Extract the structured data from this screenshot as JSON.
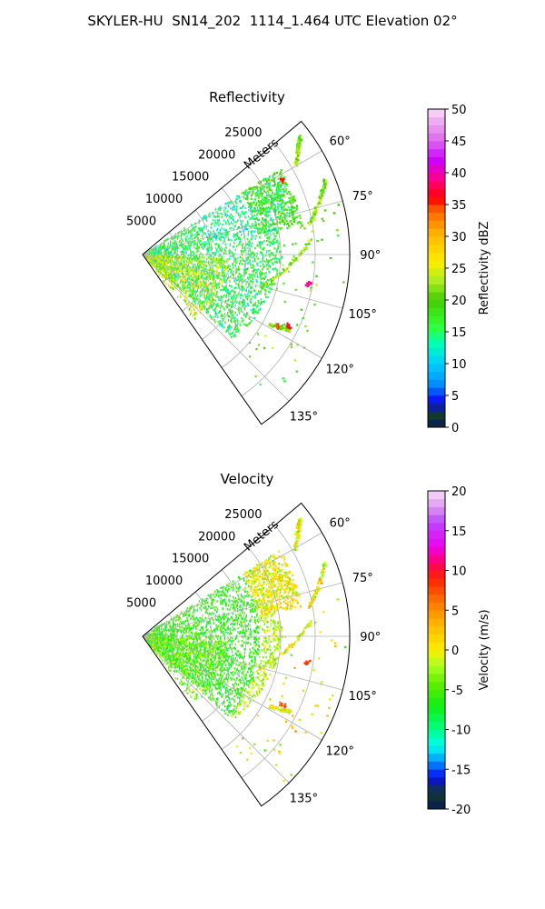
{
  "figure": {
    "title": "SKYLER-HU  SN14_202  1114_1.464 UTC Elevation 02°"
  },
  "chart_data": [
    {
      "type": "polar-sector",
      "title": "Reflectivity",
      "range_label": "Meters",
      "range_ticks": [
        5000,
        10000,
        15000,
        20000,
        25000
      ],
      "range_max_m": 30000,
      "azimuth_range_deg": [
        50,
        145
      ],
      "azimuth_ticks_deg": [
        60,
        75,
        90,
        105,
        120,
        135
      ],
      "colorbar": {
        "label": "Reflectivity dBZ",
        "range": [
          0,
          50
        ],
        "ticks": [
          0,
          5,
          10,
          15,
          20,
          25,
          30,
          35,
          40,
          45,
          50
        ],
        "stops": [
          [
            0,
            "#0b1a55"
          ],
          [
            2,
            "#123a2c"
          ],
          [
            4,
            "#0a0af0"
          ],
          [
            7,
            "#0095ff"
          ],
          [
            10,
            "#00ccff"
          ],
          [
            13,
            "#00ffbb"
          ],
          [
            16,
            "#33ff33"
          ],
          [
            20,
            "#44cc00"
          ],
          [
            23,
            "#aaee22"
          ],
          [
            26,
            "#ffee00"
          ],
          [
            30,
            "#ffbb00"
          ],
          [
            34,
            "#ff6600"
          ],
          [
            36,
            "#ff0000"
          ],
          [
            39,
            "#ff0088"
          ],
          [
            42,
            "#cc00ff"
          ],
          [
            45,
            "#dd66ee"
          ],
          [
            48,
            "#eeaaee"
          ],
          [
            50,
            "#f8ddf8"
          ]
        ]
      },
      "features": {
        "main_echo_mean": 16,
        "near_sector_mean": 24,
        "line_mean": 22,
        "peak_values": [
          40,
          38,
          37,
          36
        ]
      }
    },
    {
      "type": "polar-sector",
      "title": "Velocity",
      "range_label": "Meters",
      "range_ticks": [
        5000,
        10000,
        15000,
        20000,
        25000
      ],
      "range_max_m": 30000,
      "azimuth_range_deg": [
        50,
        145
      ],
      "azimuth_ticks_deg": [
        60,
        75,
        90,
        105,
        120,
        135
      ],
      "colorbar": {
        "label": "Velocity (m/s)",
        "range": [
          -20,
          20
        ],
        "ticks": [
          -20,
          -15,
          -10,
          -5,
          0,
          5,
          10,
          15,
          20
        ],
        "stops": [
          [
            -20,
            "#0b1a55"
          ],
          [
            -18,
            "#123a2c"
          ],
          [
            -16,
            "#0a0af0"
          ],
          [
            -14,
            "#0095ff"
          ],
          [
            -12,
            "#00ffee"
          ],
          [
            -10,
            "#00ff88"
          ],
          [
            -7,
            "#11ee11"
          ],
          [
            -4,
            "#66ee00"
          ],
          [
            -2,
            "#aaff22"
          ],
          [
            0,
            "#ffee00"
          ],
          [
            3,
            "#ffbb00"
          ],
          [
            6,
            "#ff7700"
          ],
          [
            9,
            "#ff2200"
          ],
          [
            11,
            "#ff0066"
          ],
          [
            13,
            "#ee00ee"
          ],
          [
            16,
            "#bb44ff"
          ],
          [
            18,
            "#dd99ee"
          ],
          [
            20,
            "#f8ddf8"
          ]
        ]
      },
      "features": {
        "main_echo_mean": -6,
        "outer_arc_mean": 1,
        "line_mean": 0,
        "peak_values": [
          10,
          9
        ]
      }
    }
  ]
}
